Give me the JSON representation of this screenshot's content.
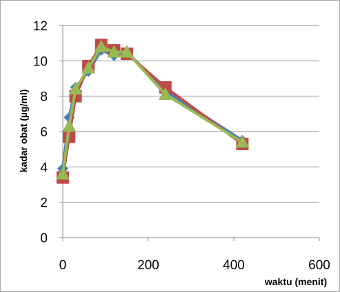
{
  "chart_data": {
    "type": "line",
    "title": "",
    "xlabel": "waktu (menit)",
    "ylabel": "kadar obat (µg/ml)",
    "xlim": [
      0,
      600
    ],
    "ylim": [
      0,
      12
    ],
    "x_ticks": [
      0,
      200,
      400,
      600
    ],
    "y_ticks": [
      0,
      2,
      4,
      6,
      8,
      10,
      12
    ],
    "grid": "horizontal",
    "legend": "none",
    "series": [
      {
        "color": "#4a7ebb",
        "marker": "diamond",
        "x": [
          0,
          15,
          30,
          60,
          90,
          120,
          150,
          240,
          420
        ],
        "y": [
          3.9,
          6.8,
          8.5,
          9.4,
          10.6,
          10.3,
          10.5,
          8.3,
          5.5
        ]
      },
      {
        "color": "#be4b48",
        "marker": "square",
        "x": [
          0,
          15,
          30,
          60,
          90,
          120,
          150,
          240,
          420
        ],
        "y": [
          3.4,
          5.7,
          8.0,
          9.7,
          10.9,
          10.6,
          10.4,
          8.5,
          5.3
        ]
      },
      {
        "color": "#98b954",
        "marker": "triangle",
        "x": [
          0,
          15,
          30,
          60,
          90,
          120,
          150,
          240,
          420
        ],
        "y": [
          3.6,
          6.3,
          8.4,
          9.6,
          10.8,
          10.5,
          10.5,
          8.1,
          5.4
        ]
      }
    ]
  }
}
